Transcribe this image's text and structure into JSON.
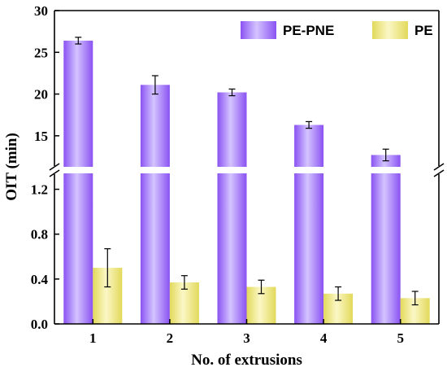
{
  "chart_data": {
    "type": "bar",
    "title": "",
    "xlabel": "No. of extrusions",
    "ylabel": "OIT (min)",
    "categories": [
      "1",
      "2",
      "3",
      "4",
      "5"
    ],
    "series": [
      {
        "name": "PE-PNE",
        "values": [
          26.4,
          21.1,
          20.2,
          16.3,
          12.7
        ],
        "errors": [
          0.4,
          1.1,
          0.4,
          0.4,
          0.7
        ],
        "color_top": "#d4c4ff",
        "color_mid": "#8a52f2"
      },
      {
        "name": "PE",
        "values": [
          0.5,
          0.37,
          0.33,
          0.27,
          0.23
        ],
        "errors": [
          0.17,
          0.06,
          0.06,
          0.06,
          0.06
        ],
        "color_top": "#fbf7c6",
        "color_mid": "#e2d95a"
      }
    ],
    "axis": {
      "broken": true,
      "lower_range": [
        0.0,
        1.4
      ],
      "upper_range": [
        10.5,
        30
      ],
      "lower_ticks": [
        "0.0",
        "0.4",
        "0.8",
        "1.2"
      ],
      "upper_ticks": [
        "15",
        "20",
        "25",
        "30"
      ]
    },
    "legend_position": "top-right",
    "grid": false
  }
}
